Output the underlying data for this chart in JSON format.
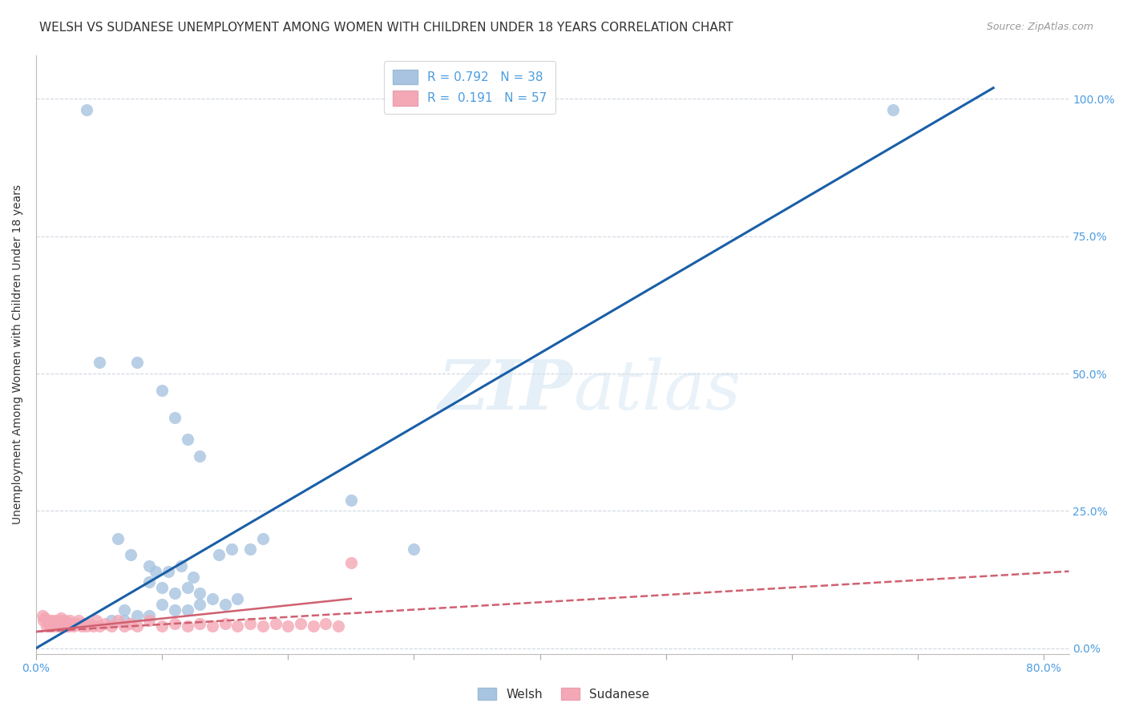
{
  "title": "WELSH VS SUDANESE UNEMPLOYMENT AMONG WOMEN WITH CHILDREN UNDER 18 YEARS CORRELATION CHART",
  "source": "Source: ZipAtlas.com",
  "ylabel": "Unemployment Among Women with Children Under 18 years",
  "xlabel_ticks": [
    "0.0%",
    "",
    "",
    "",
    "",
    "",
    "",
    "",
    "80.0%"
  ],
  "ylabel_ticks": [
    "0.0%",
    "25.0%",
    "50.0%",
    "75.0%",
    "100.0%"
  ],
  "xlim": [
    0.0,
    0.82
  ],
  "ylim": [
    -0.01,
    1.08
  ],
  "welsh_R": 0.792,
  "welsh_N": 38,
  "sudanese_R": 0.191,
  "sudanese_N": 57,
  "welsh_color": "#a8c4e0",
  "welsh_line_color": "#1a5fa8",
  "sudanese_color": "#f4a7b5",
  "sudanese_line_color": "#d06070",
  "legend_label_color": "#4d9de0",
  "background_color": "#ffffff",
  "grid_color": "#d0d8e0",
  "watermark_zip": "ZIP",
  "watermark_atlas": "atlas",
  "title_fontsize": 11,
  "label_fontsize": 10,
  "tick_fontsize": 10,
  "welsh_x": [
    0.04,
    0.68,
    0.05,
    0.08,
    0.1,
    0.11,
    0.12,
    0.13,
    0.065,
    0.075,
    0.09,
    0.095,
    0.105,
    0.115,
    0.125,
    0.145,
    0.155,
    0.09,
    0.1,
    0.11,
    0.12,
    0.13,
    0.14,
    0.15,
    0.16,
    0.1,
    0.11,
    0.12,
    0.13,
    0.07,
    0.08,
    0.09,
    0.06,
    0.07,
    0.17,
    0.18,
    0.25,
    0.3
  ],
  "welsh_y": [
    0.98,
    0.98,
    0.52,
    0.52,
    0.47,
    0.42,
    0.38,
    0.35,
    0.2,
    0.17,
    0.15,
    0.14,
    0.14,
    0.15,
    0.13,
    0.17,
    0.18,
    0.12,
    0.11,
    0.1,
    0.11,
    0.1,
    0.09,
    0.08,
    0.09,
    0.08,
    0.07,
    0.07,
    0.08,
    0.07,
    0.06,
    0.06,
    0.05,
    0.05,
    0.18,
    0.2,
    0.27,
    0.18
  ],
  "sudanese_x": [
    0.005,
    0.006,
    0.007,
    0.008,
    0.009,
    0.01,
    0.011,
    0.012,
    0.013,
    0.014,
    0.015,
    0.016,
    0.017,
    0.018,
    0.019,
    0.02,
    0.021,
    0.022,
    0.023,
    0.024,
    0.025,
    0.026,
    0.027,
    0.028,
    0.03,
    0.032,
    0.034,
    0.036,
    0.038,
    0.04,
    0.042,
    0.045,
    0.048,
    0.05,
    0.055,
    0.06,
    0.065,
    0.07,
    0.075,
    0.08,
    0.09,
    0.1,
    0.11,
    0.12,
    0.13,
    0.14,
    0.15,
    0.16,
    0.17,
    0.18,
    0.19,
    0.2,
    0.21,
    0.22,
    0.23,
    0.24,
    0.25
  ],
  "sudanese_y": [
    0.06,
    0.05,
    0.055,
    0.04,
    0.05,
    0.045,
    0.04,
    0.05,
    0.04,
    0.045,
    0.05,
    0.04,
    0.045,
    0.04,
    0.05,
    0.055,
    0.04,
    0.045,
    0.05,
    0.04,
    0.045,
    0.04,
    0.05,
    0.045,
    0.04,
    0.045,
    0.05,
    0.04,
    0.045,
    0.04,
    0.045,
    0.04,
    0.05,
    0.04,
    0.045,
    0.04,
    0.05,
    0.04,
    0.045,
    0.04,
    0.05,
    0.04,
    0.045,
    0.04,
    0.045,
    0.04,
    0.045,
    0.04,
    0.045,
    0.04,
    0.045,
    0.04,
    0.045,
    0.04,
    0.045,
    0.04,
    0.155
  ],
  "welsh_line_x": [
    0.0,
    0.76
  ],
  "welsh_line_y": [
    0.0,
    1.02
  ],
  "sudanese_line_x": [
    0.0,
    0.82
  ],
  "sudanese_line_y": [
    0.03,
    0.14
  ]
}
